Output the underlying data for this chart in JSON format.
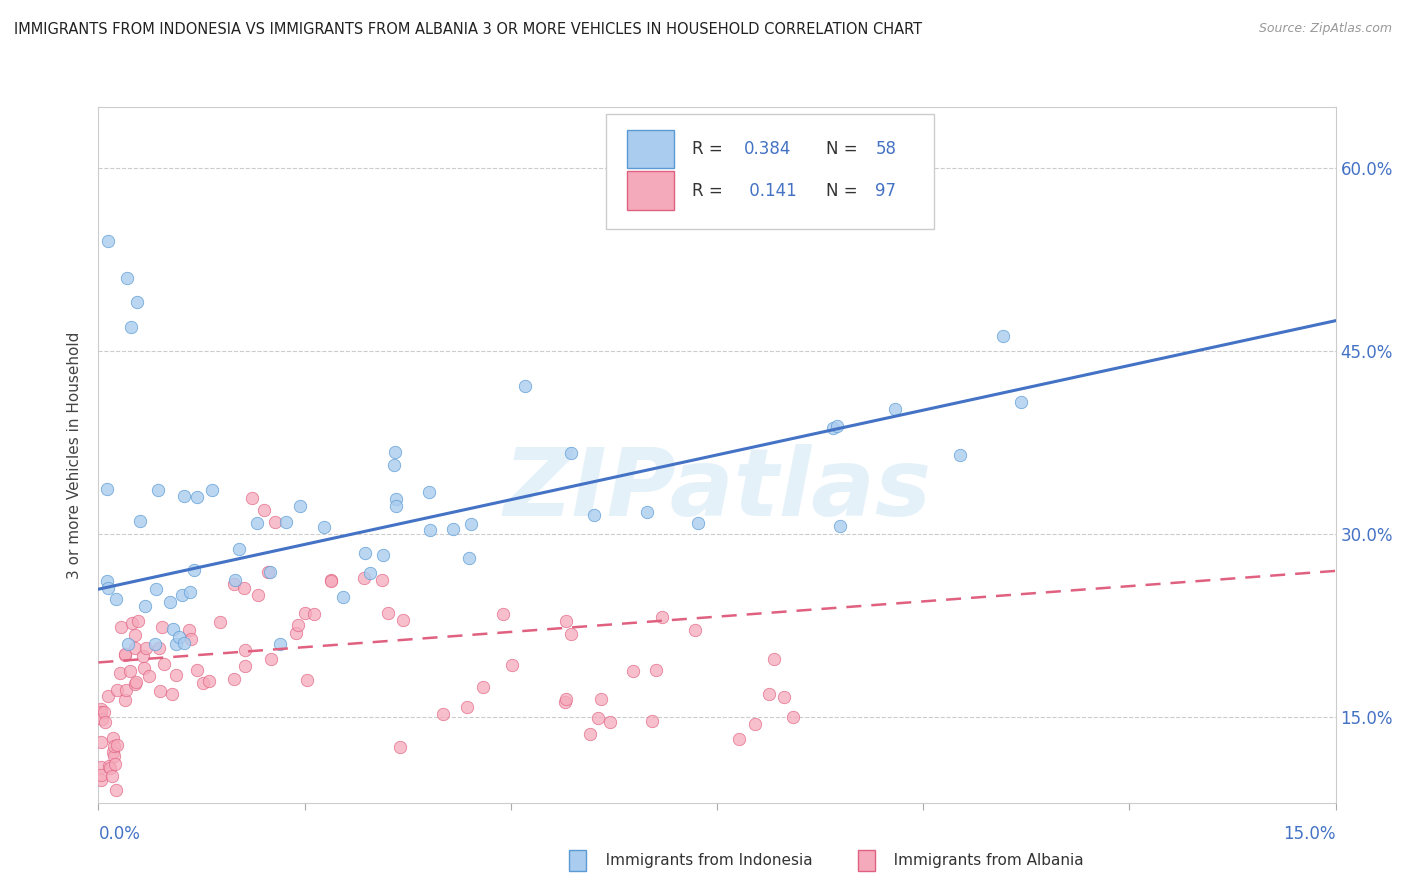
{
  "title": "IMMIGRANTS FROM INDONESIA VS IMMIGRANTS FROM ALBANIA 3 OR MORE VEHICLES IN HOUSEHOLD CORRELATION CHART",
  "source": "Source: ZipAtlas.com",
  "ylabel": "3 or more Vehicles in Household",
  "yaxis_ticks": [
    "15.0%",
    "30.0%",
    "45.0%",
    "60.0%"
  ],
  "yaxis_values": [
    0.15,
    0.3,
    0.45,
    0.6
  ],
  "r_indonesia": 0.384,
  "n_indonesia": 58,
  "r_albania": 0.141,
  "n_albania": 97,
  "color_indonesia_fill": "#aaccee",
  "color_indonesia_edge": "#5b9bd5",
  "color_albania_fill": "#f5aabb",
  "color_albania_edge": "#e06080",
  "color_trend_indonesia": "#4472c4",
  "color_trend_albania": "#e06080",
  "watermark": "ZIPatlas",
  "xmin": 0.0,
  "xmax": 0.15,
  "ymin": 0.08,
  "ymax": 0.65,
  "ind_trend_y0": 0.255,
  "ind_trend_y1": 0.475,
  "alb_trend_y0": 0.195,
  "alb_trend_y1": 0.27
}
